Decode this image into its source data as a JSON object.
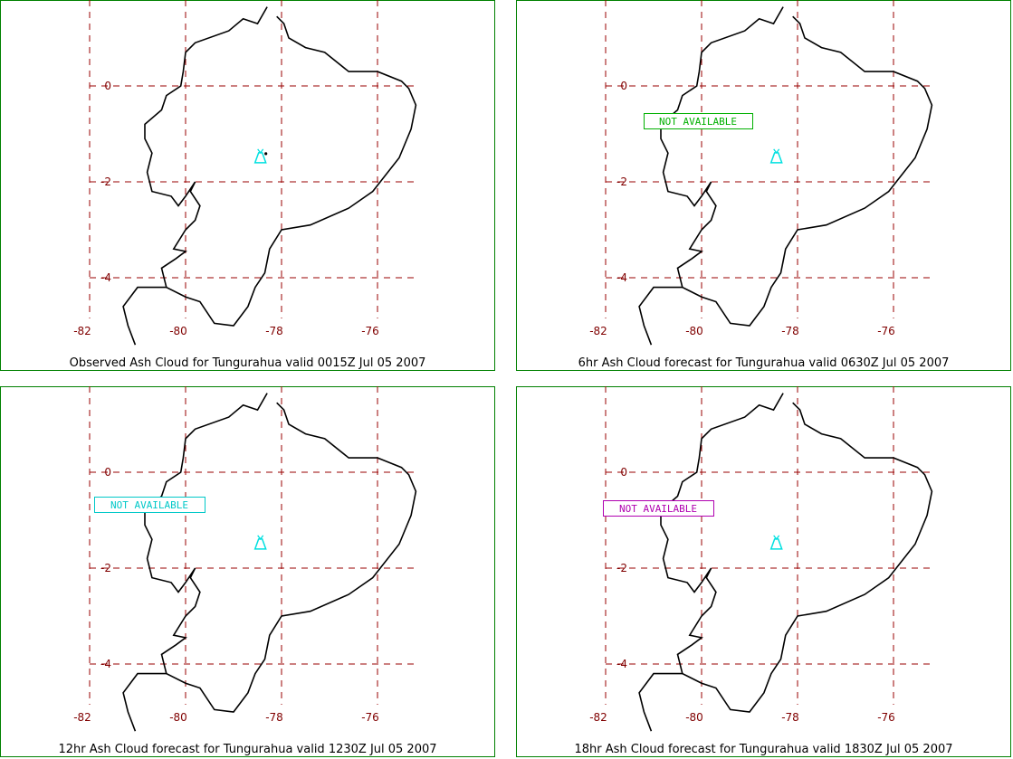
{
  "map": {
    "longitude_ticks": [
      "-82",
      "-80",
      "-78",
      "-76"
    ],
    "latitude_ticks": [
      "0",
      "-2",
      "-4"
    ],
    "lon_values": [
      -82,
      -80,
      -78,
      -76
    ],
    "lat_values": [
      0,
      -2,
      -4
    ],
    "volcano": {
      "name": "Tungurahua",
      "lon": -78.44,
      "lat": -1.47
    },
    "colors": {
      "frame": "#008000",
      "grid": "#990000",
      "tick_text": "#800000",
      "coast": "#000000",
      "volcano": "#00e0e0"
    }
  },
  "panels": [
    {
      "caption": "Observed Ash Cloud for Tungurahua valid 0015Z Jul 05 2007",
      "notice": null,
      "ash_observed": true
    },
    {
      "caption": "6hr Ash Cloud forecast for Tungurahua valid 0630Z Jul 05 2007",
      "notice": {
        "text": "NOT AVAILABLE",
        "color": "#00b000"
      }
    },
    {
      "caption": "12hr Ash Cloud forecast for Tungurahua valid 1230Z Jul 05 2007",
      "notice": {
        "text": "NOT AVAILABLE",
        "color": "#00c8c8"
      }
    },
    {
      "caption": "18hr Ash Cloud forecast for Tungurahua valid 1830Z Jul 05 2007",
      "notice": {
        "text": "NOT AVAILABLE",
        "color": "#b000b0"
      }
    }
  ]
}
